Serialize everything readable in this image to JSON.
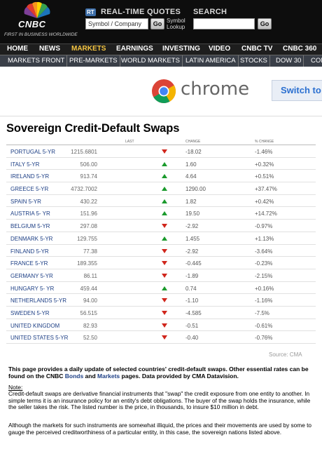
{
  "header": {
    "logo_text": "CNBC",
    "logo_tagline": "FIRST IN BUSINESS WORLDWIDE",
    "rt_badge": "RT",
    "rt_title": "REAL-TIME QUOTES",
    "symbol_placeholder": "Symbol / Company",
    "go_label": "Go",
    "symbol_lookup_line1": "Symbol",
    "symbol_lookup_line2": "Lookup",
    "search_title": "SEARCH"
  },
  "nav_primary": [
    "HOME",
    "NEWS",
    "MARKETS",
    "EARNINGS",
    "INVESTING",
    "VIDEO",
    "CNBC TV",
    "CNBC 360"
  ],
  "nav_primary_active": "MARKETS",
  "nav_secondary": [
    "MARKETS FRONT",
    "PRE-MARKETS",
    "WORLD MARKETS",
    "LATIN AMERICA",
    "STOCKS",
    "DOW 30",
    "COM"
  ],
  "ad": {
    "wordmark": "chrome",
    "button": "Switch to C"
  },
  "page_title": "Sovereign Credit-Default Swaps",
  "table": {
    "headers": {
      "last": "LAST",
      "change": "CHANGE",
      "pct_change": "% CHANGE"
    },
    "rows": [
      {
        "name": "PORTUGAL 5-YR",
        "last": "1215.6801",
        "dir": "down",
        "change": "-18.02",
        "pct": "-1.46%"
      },
      {
        "name": "ITALY 5-YR",
        "last": "506.00",
        "dir": "up",
        "change": "1.60",
        "pct": "+0.32%"
      },
      {
        "name": "IRELAND 5-YR",
        "last": "913.74",
        "dir": "up",
        "change": "4.64",
        "pct": "+0.51%"
      },
      {
        "name": "GREECE 5-YR",
        "last": "4732.7002",
        "dir": "up",
        "change": "1290.00",
        "pct": "+37.47%"
      },
      {
        "name": "SPAIN 5-YR",
        "last": "430.22",
        "dir": "up",
        "change": "1.82",
        "pct": "+0.42%"
      },
      {
        "name": "AUSTRIA 5- YR",
        "last": "151.96",
        "dir": "up",
        "change": "19.50",
        "pct": "+14.72%"
      },
      {
        "name": "BELGIUM 5-YR",
        "last": "297.08",
        "dir": "down",
        "change": "-2.92",
        "pct": "-0.97%"
      },
      {
        "name": "DENMARK 5-YR",
        "last": "129.755",
        "dir": "up",
        "change": "1.455",
        "pct": "+1.13%"
      },
      {
        "name": "FINLAND 5-YR",
        "last": "77.38",
        "dir": "down",
        "change": "-2.92",
        "pct": "-3.64%"
      },
      {
        "name": "FRANCE 5-YR",
        "last": "189.355",
        "dir": "down",
        "change": "-0.445",
        "pct": "-0.23%"
      },
      {
        "name": "GERMANY 5-YR",
        "last": "86.11",
        "dir": "down",
        "change": "-1.89",
        "pct": "-2.15%"
      },
      {
        "name": "HUNGARY 5- YR",
        "last": "459.44",
        "dir": "up",
        "change": "0.74",
        "pct": "+0.16%"
      },
      {
        "name": "NETHERLANDS 5-YR",
        "last": "94.00",
        "dir": "down",
        "change": "-1.10",
        "pct": "-1.16%"
      },
      {
        "name": "SWEDEN 5-YR",
        "last": "56.515",
        "dir": "down",
        "change": "-4.585",
        "pct": "-7.5%"
      },
      {
        "name": "UNITED KINGDOM",
        "last": "82.93",
        "dir": "down",
        "change": "-0.51",
        "pct": "-0.61%"
      },
      {
        "name": "UNITED STATES 5-YR",
        "last": "52.50",
        "dir": "down",
        "change": "-0.40",
        "pct": "-0.76%"
      }
    ],
    "source": "Source: CMA"
  },
  "intro": {
    "part1": "This page provides a daily update of selected countries' credit-default swaps. Other essential rates can be found on the CNBC ",
    "bonds_link": "Bonds",
    "part2": " and ",
    "markets_link": "Markets",
    "part3": " pages. Data provided by CMA Datavision."
  },
  "note_label": "Note:",
  "note_body": "Credit-default swaps are derivative financial instruments that \"swap\" the credit exposure from one entity to another. In simple terms it is an insurance policy for an entity's debt obligations. The buyer of the swap holds the insurance, while the seller takes the risk. The listed number is the price, in thousands, to insure $10 million in debt.",
  "note_body2": "Although the markets for such instruments are somewhat illiquid, the prices and their movements are used by some to gauge the perceived creditworthiness of a particular entity, in this case, the sovereign nations listed above.",
  "colors": {
    "up": "#1a9a2c",
    "down": "#d0261c",
    "link": "#1d3f85",
    "active_nav": "#f5c542"
  }
}
